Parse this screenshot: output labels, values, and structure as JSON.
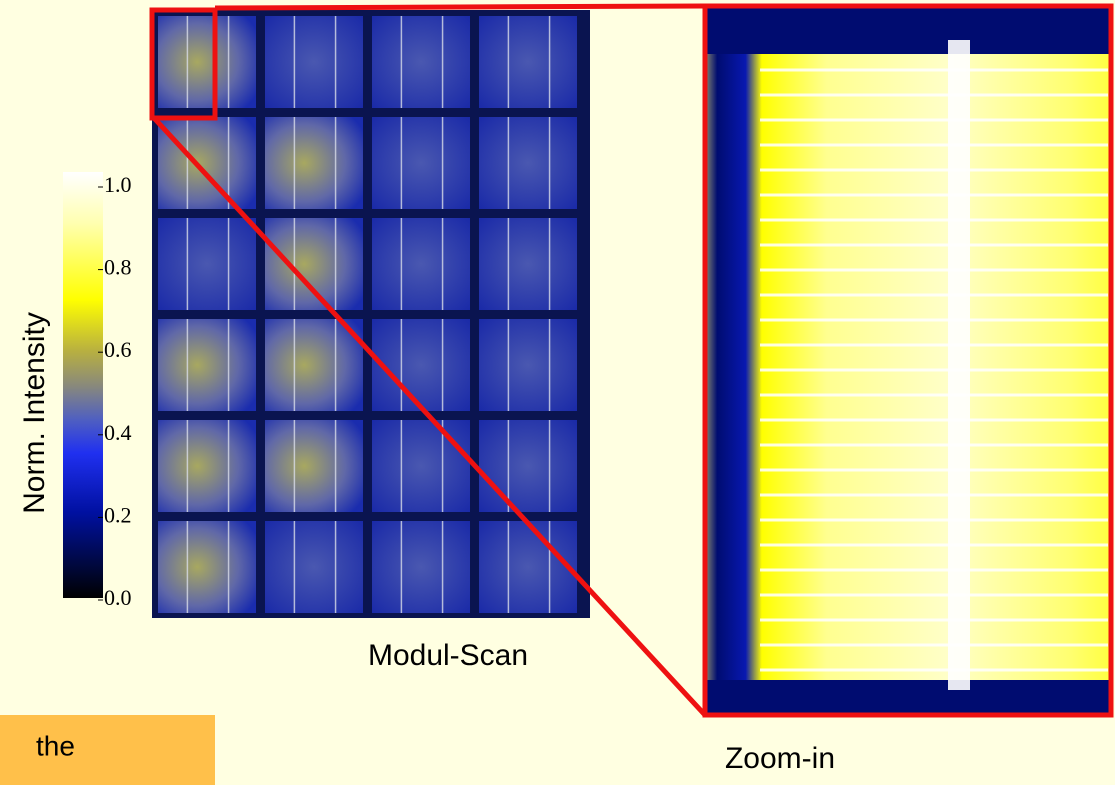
{
  "colorbar": {
    "title": "Norm. Intensity",
    "ticks": [
      "1.0",
      "0.8",
      "0.6",
      "0.4",
      "0.2",
      "0.0"
    ]
  },
  "module_scan": {
    "caption": "Modul-Scan"
  },
  "zoom": {
    "caption": "Zoom-in"
  },
  "note": {
    "text": "the"
  }
}
